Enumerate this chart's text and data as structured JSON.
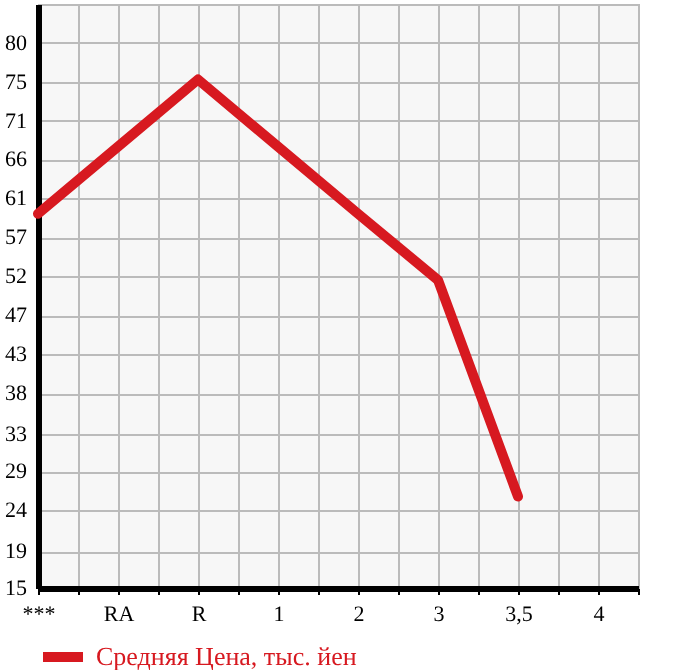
{
  "chart_data": {
    "type": "line",
    "categories": [
      "***",
      "RA",
      "R",
      "1",
      "2",
      "3",
      "3,5",
      "4"
    ],
    "series": [
      {
        "name": "Средняя Цена, тыс. йен",
        "color": "#d71920",
        "values": [
          59.6,
          67.6,
          75.6,
          67.6,
          59.6,
          51.7,
          25.9,
          null
        ]
      }
    ],
    "ylim": [
      15,
      84.6
    ],
    "yticks": [
      15,
      {
        "value": 19.4,
        "label": "19"
      },
      {
        "value": 24.29,
        "label": "24"
      },
      {
        "value": 28.93,
        "label": "29"
      },
      {
        "value": 33.4,
        "label": "33"
      },
      {
        "value": 38.21,
        "label": "38"
      },
      {
        "value": 42.86,
        "label": "43"
      },
      {
        "value": 47.5,
        "label": "47"
      },
      {
        "value": 52.14,
        "label": "52"
      },
      {
        "value": 56.79,
        "label": "57"
      },
      {
        "value": 61.43,
        "label": "61"
      },
      {
        "value": 66.07,
        "label": "66"
      },
      {
        "value": 70.71,
        "label": "71"
      },
      {
        "value": 75.36,
        "label": "75"
      },
      80
    ],
    "grid": true,
    "legend": "bottom",
    "marker": "none",
    "line_style": "solid"
  }
}
